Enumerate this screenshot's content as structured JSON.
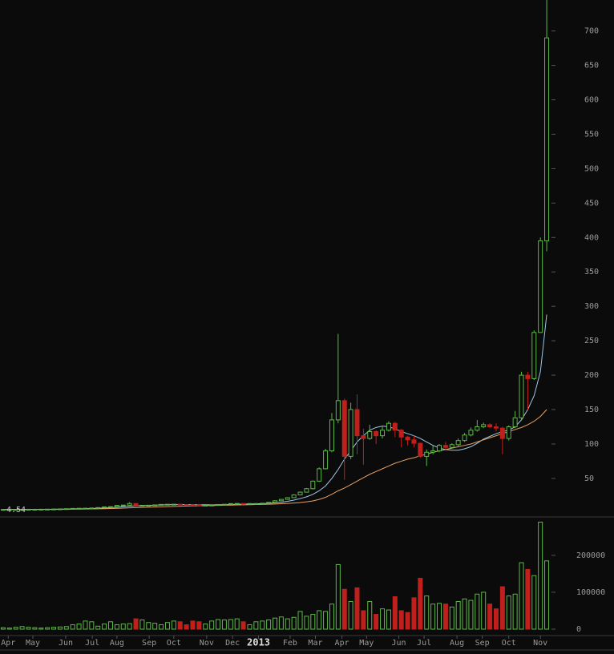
{
  "chart_data": {
    "type": "candlestick",
    "up_color": "#5cb847",
    "down_color": "#c0201c",
    "price_label": 4.54,
    "xlim": [
      -0.5,
      86.5
    ],
    "xticks": [
      {
        "value": 0.8,
        "label": "Apr"
      },
      {
        "value": 4.7,
        "label": "May"
      },
      {
        "value": 9.9,
        "label": "Jun"
      },
      {
        "value": 14.1,
        "label": "Jul"
      },
      {
        "value": 18.0,
        "label": "Aug"
      },
      {
        "value": 23.1,
        "label": "Sep"
      },
      {
        "value": 27.0,
        "label": "Oct"
      },
      {
        "value": 32.2,
        "label": "Nov"
      },
      {
        "value": 36.3,
        "label": "Dec"
      },
      {
        "value": 40.4,
        "label": "2013",
        "bold": true
      },
      {
        "value": 45.4,
        "label": "Feb"
      },
      {
        "value": 49.4,
        "label": "Mar"
      },
      {
        "value": 53.6,
        "label": "Apr"
      },
      {
        "value": 57.5,
        "label": "May"
      },
      {
        "value": 62.6,
        "label": "Jun"
      },
      {
        "value": 66.6,
        "label": "Jul"
      },
      {
        "value": 71.8,
        "label": "Aug"
      },
      {
        "value": 75.8,
        "label": "Sep"
      },
      {
        "value": 80.0,
        "label": "Oct"
      },
      {
        "value": 85.0,
        "label": "Nov"
      }
    ],
    "ylim": [
      -6,
      745
    ],
    "yticks": [
      50,
      100,
      150,
      200,
      250,
      300,
      350,
      400,
      450,
      500,
      550,
      600,
      650,
      700
    ],
    "volume_ylim": [
      0,
      304000
    ],
    "volume_yticks": [
      0,
      100000,
      200000
    ],
    "open": [
      4.8,
      4.9,
      5.0,
      5.0,
      5.1,
      5.1,
      5.1,
      5.2,
      5.3,
      5.5,
      5.7,
      6.0,
      6.4,
      6.6,
      6.7,
      7.0,
      7.6,
      8.6,
      8.9,
      10.8,
      11.2,
      13.5,
      10.5,
      10.9,
      11.0,
      11.5,
      12.2,
      12.4,
      12.5,
      12.0,
      11.8,
      11.7,
      10.8,
      11.0,
      11.2,
      12.1,
      12.4,
      13.4,
      13.6,
      13.4,
      13.5,
      13.5,
      14.0,
      15.2,
      17.5,
      19.5,
      22,
      26,
      30,
      35,
      46,
      64,
      90,
      135,
      163,
      82,
      150,
      112,
      108,
      118,
      112,
      120,
      130,
      120,
      110,
      106,
      101,
      82,
      88,
      90,
      98,
      95,
      99,
      105,
      113,
      120,
      125,
      128,
      125,
      123,
      108,
      125,
      138,
      200,
      195,
      262,
      395
    ],
    "high": [
      5.0,
      5.1,
      5.1,
      5.2,
      5.2,
      5.2,
      5.3,
      5.4,
      5.6,
      5.8,
      6.2,
      6.6,
      6.8,
      6.9,
      7.2,
      7.8,
      8.9,
      9.2,
      11.1,
      11.6,
      15.4,
      13.8,
      11.3,
      11.3,
      11.8,
      12.5,
      12.6,
      12.8,
      12.7,
      12.2,
      12.0,
      11.9,
      11.2,
      11.4,
      12.4,
      12.7,
      13.7,
      13.9,
      13.8,
      13.8,
      13.8,
      14.3,
      15.6,
      18.0,
      20.0,
      22.5,
      27,
      31,
      36,
      47,
      66,
      93,
      145,
      260,
      166,
      160,
      172,
      122,
      128,
      120,
      125,
      133,
      132,
      122,
      112,
      112,
      102,
      92,
      98,
      100,
      103,
      101,
      108,
      116,
      124,
      135,
      131,
      130,
      130,
      125,
      127,
      148,
      205,
      205,
      265,
      400,
      760
    ],
    "low": [
      4.7,
      4.8,
      4.9,
      4.9,
      5.0,
      5.0,
      5.0,
      5.1,
      5.2,
      5.4,
      5.6,
      5.9,
      6.3,
      6.5,
      6.6,
      6.9,
      7.5,
      8.4,
      8.8,
      10.5,
      11.0,
      10.2,
      10.3,
      10.7,
      10.9,
      11.3,
      12.0,
      12.2,
      11.8,
      11.6,
      11.5,
      10.6,
      10.6,
      10.9,
      11.1,
      12.0,
      12.3,
      13.2,
      13.2,
      13.2,
      13.3,
      13.4,
      13.9,
      15.0,
      17.3,
      19.2,
      21.5,
      25.5,
      29.5,
      34,
      45,
      63,
      88,
      130,
      48,
      78,
      85,
      70,
      106,
      100,
      108,
      118,
      110,
      95,
      98,
      95,
      80,
      68,
      85,
      88,
      93,
      93,
      97,
      103,
      111,
      118,
      123,
      123,
      118,
      85,
      105,
      123,
      136,
      150,
      193,
      262,
      380
    ],
    "close": [
      4.9,
      5.0,
      5.0,
      5.1,
      5.1,
      5.1,
      5.2,
      5.3,
      5.5,
      5.7,
      6.0,
      6.4,
      6.6,
      6.7,
      7.0,
      7.6,
      8.6,
      8.9,
      10.8,
      11.2,
      13.5,
      10.5,
      10.9,
      11.0,
      11.5,
      12.2,
      12.4,
      12.5,
      12.0,
      11.8,
      11.7,
      10.8,
      11.0,
      11.2,
      12.1,
      12.4,
      13.4,
      13.6,
      13.4,
      13.5,
      13.5,
      14.0,
      15.2,
      17.5,
      19.5,
      22,
      26,
      30,
      35,
      46,
      64,
      90,
      135,
      163,
      82,
      150,
      112,
      108,
      118,
      112,
      120,
      130,
      120,
      110,
      106,
      101,
      82,
      88,
      90,
      98,
      95,
      99,
      105,
      113,
      120,
      125,
      128,
      125,
      123,
      108,
      125,
      138,
      200,
      195,
      262,
      395,
      690
    ],
    "volume": [
      4000,
      3000,
      5000,
      7000,
      5000,
      4000,
      3000,
      4000,
      5000,
      6000,
      7000,
      12000,
      14000,
      22000,
      20000,
      8000,
      14000,
      20000,
      12000,
      14000,
      15000,
      28000,
      25000,
      18000,
      16000,
      12000,
      18000,
      22000,
      20000,
      12000,
      22000,
      20000,
      14000,
      22000,
      26000,
      25000,
      26000,
      28000,
      20000,
      12000,
      20000,
      22000,
      25000,
      30000,
      33000,
      28000,
      32000,
      48000,
      35000,
      40000,
      50000,
      48000,
      68000,
      175000,
      108000,
      75000,
      112000,
      50000,
      75000,
      40000,
      55000,
      52000,
      88000,
      50000,
      45000,
      85000,
      138000,
      90000,
      68000,
      70000,
      68000,
      60000,
      75000,
      82000,
      78000,
      95000,
      100000,
      68000,
      55000,
      115000,
      90000,
      95000,
      180000,
      162000,
      145000,
      290000,
      185000
    ],
    "ma_series": [
      {
        "color": "#9fc8e8",
        "values": [
          4.9,
          4.9,
          5.0,
          5.0,
          5.0,
          5.0,
          5.1,
          5.1,
          5.2,
          5.3,
          5.4,
          5.6,
          5.8,
          6.0,
          6.3,
          6.6,
          7.0,
          7.5,
          8.1,
          8.8,
          9.6,
          10.0,
          10.4,
          10.8,
          11.1,
          11.4,
          11.7,
          11.9,
          12.0,
          12.0,
          11.9,
          11.8,
          11.7,
          11.6,
          11.6,
          11.8,
          12.0,
          12.3,
          12.6,
          12.9,
          13.1,
          13.4,
          13.8,
          14.5,
          15.4,
          16.7,
          18.5,
          20.7,
          23.3,
          26.8,
          32,
          39,
          50,
          63,
          78,
          90,
          103,
          112,
          120,
          124,
          126,
          125,
          122,
          118,
          115,
          112,
          108,
          103,
          98,
          94,
          92,
          91,
          91,
          93,
          96,
          101,
          107,
          111,
          115,
          118,
          120,
          125,
          135,
          150,
          170,
          205,
          288
        ]
      },
      {
        "color": "#e8a060",
        "values": [
          4.8,
          4.8,
          4.9,
          4.9,
          4.9,
          5.0,
          5.0,
          5.0,
          5.1,
          5.1,
          5.2,
          5.3,
          5.4,
          5.5,
          5.6,
          5.8,
          6.0,
          6.2,
          6.5,
          6.8,
          7.2,
          7.5,
          7.8,
          8.1,
          8.4,
          8.7,
          9.0,
          9.3,
          9.6,
          9.8,
          10.0,
          10.2,
          10.4,
          10.6,
          10.8,
          11.0,
          11.2,
          11.4,
          11.6,
          11.8,
          12.0,
          12.2,
          12.5,
          12.8,
          13.2,
          13.7,
          14.3,
          15.0,
          16.0,
          17.3,
          19.5,
          22.5,
          27,
          32,
          36,
          41,
          46,
          51,
          56,
          60,
          64,
          68,
          72,
          75,
          78,
          80,
          83,
          85,
          88,
          90,
          92,
          94,
          96,
          98,
          100,
          103,
          106,
          109,
          112,
          115,
          118,
          121,
          124,
          128,
          133,
          140,
          150
        ]
      }
    ]
  }
}
